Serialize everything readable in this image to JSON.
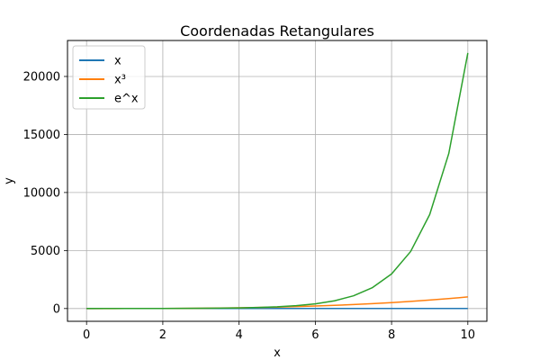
{
  "chart_data": {
    "type": "line",
    "title": "Coordenadas Retangulares",
    "xlabel": "x",
    "ylabel": "y",
    "xlim": [
      -0.5,
      10.5
    ],
    "ylim": [
      -1100,
      23100
    ],
    "xticks": [
      0,
      2,
      4,
      6,
      8,
      10
    ],
    "xtick_labels": [
      "0",
      "2",
      "4",
      "6",
      "8",
      "10"
    ],
    "yticks": [
      0,
      5000,
      10000,
      15000,
      20000
    ],
    "ytick_labels": [
      "0",
      "5000",
      "10000",
      "15000",
      "20000"
    ],
    "grid": true,
    "legend_position": "upper-left",
    "x": [
      0,
      0.5,
      1,
      1.5,
      2,
      2.5,
      3,
      3.5,
      4,
      4.5,
      5,
      5.5,
      6,
      6.5,
      7,
      7.5,
      8,
      8.5,
      9,
      9.5,
      10
    ],
    "series": [
      {
        "name": "x",
        "color": "#1f77b4",
        "values": [
          0,
          0.5,
          1,
          1.5,
          2,
          2.5,
          3,
          3.5,
          4,
          4.5,
          5,
          5.5,
          6,
          6.5,
          7,
          7.5,
          8,
          8.5,
          9,
          9.5,
          10
        ]
      },
      {
        "name": "x³",
        "color": "#ff7f0e",
        "values": [
          0,
          0.1,
          1,
          3.4,
          8,
          15.6,
          27,
          42.9,
          64,
          91.1,
          125,
          166.4,
          216,
          274.6,
          343,
          421.9,
          512,
          614.1,
          729,
          857.4,
          1000
        ]
      },
      {
        "name": "e^x",
        "color": "#2ca02c",
        "values": [
          1,
          1.6,
          2.7,
          4.5,
          7.4,
          12.2,
          20.1,
          33.1,
          54.6,
          90,
          148.4,
          244.7,
          403.4,
          665.1,
          1096.6,
          1808,
          2981,
          4914.8,
          8103.1,
          13359.7,
          22026.5
        ]
      }
    ]
  }
}
